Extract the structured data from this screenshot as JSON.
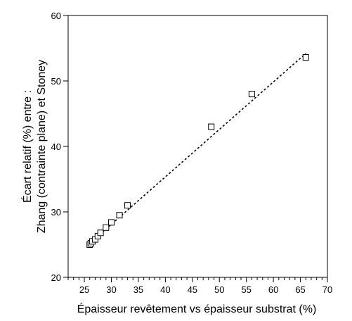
{
  "chart_data": {
    "type": "scatter",
    "xlabel": "Épaisseur revêtement vs épaisseur substrat (%)",
    "ylabel_lines": [
      "Écart relatif (%) entre :",
      "Zhang (contrainte plane) et Stoney"
    ],
    "xlim": [
      22,
      70
    ],
    "ylim": [
      20,
      60
    ],
    "x_major_ticks": [
      25,
      30,
      35,
      40,
      45,
      50,
      55,
      60,
      65,
      70
    ],
    "y_major_ticks": [
      20,
      30,
      40,
      50,
      60
    ],
    "x_minor_step": 1,
    "grid": false,
    "legend": "none",
    "marker": "open-square",
    "series": [
      {
        "points": [
          {
            "x": 26.0,
            "y": 25.0
          },
          {
            "x": 26.2,
            "y": 25.2
          },
          {
            "x": 26.5,
            "y": 25.5
          },
          {
            "x": 27.0,
            "y": 25.8
          },
          {
            "x": 27.5,
            "y": 26.3
          },
          {
            "x": 28.0,
            "y": 26.8
          },
          {
            "x": 29.0,
            "y": 27.6
          },
          {
            "x": 30.0,
            "y": 28.4
          },
          {
            "x": 31.5,
            "y": 29.5
          },
          {
            "x": 33.0,
            "y": 31.0
          },
          {
            "x": 48.5,
            "y": 43.0
          },
          {
            "x": 56.0,
            "y": 48.0
          },
          {
            "x": 66.0,
            "y": 53.6
          }
        ]
      }
    ],
    "fit_line": {
      "style": "dashed",
      "x": [
        26.0,
        66.0
      ],
      "y": [
        25.2,
        54.2
      ]
    }
  }
}
